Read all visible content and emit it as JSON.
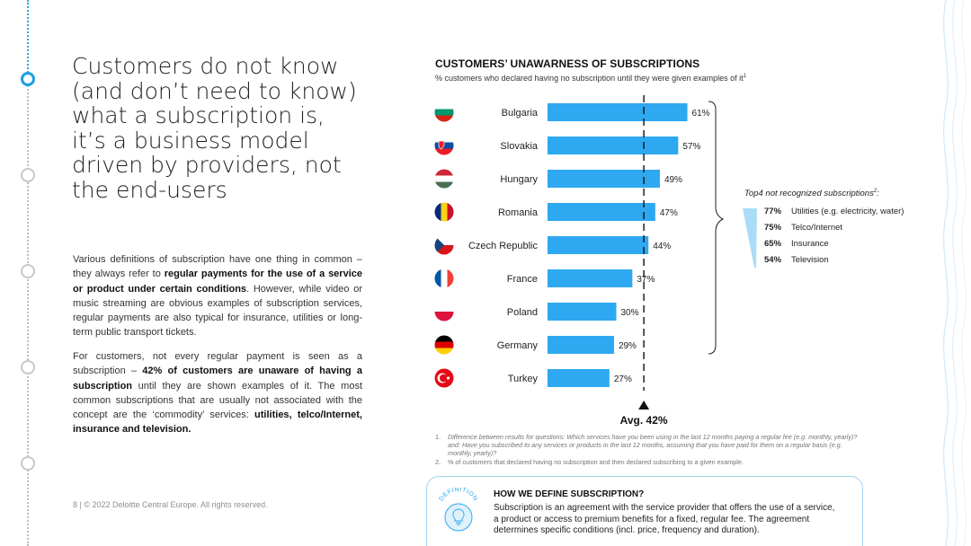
{
  "page": {
    "headline_lines": [
      "Customers do not know",
      "(and don’t need to know)",
      "what a subscription is,",
      "it’s a business model",
      "driven by providers, not",
      "the end-users"
    ],
    "paragraph1": {
      "t1": "Various definitions of subscription have one thing in common – they always refer to ",
      "b1": "regular payments for the use of a service or product under certain conditions",
      "t2": ". However, while video or music streaming are obvious examples of subscription services, regular payments are also typical for insurance, utilities or long-term public transport tickets."
    },
    "paragraph2": {
      "t1": "For customers, not every regular payment is seen as a subscription – ",
      "b1": "42% of customers are unaware of having a subscription",
      "t2": " until they are shown examples of it. The most common subscriptions that are usually not associated with the concept are the ‘commodity’ services: ",
      "b2": "utilities, telco/Internet, insurance and television."
    },
    "footer": "8  |  © 2022 Deloitte Central Europe. All rights reserved."
  },
  "chart_data": {
    "type": "bar",
    "title": "CUSTOMERS’ UNAWARNESS OF SUBSCRIPTIONS",
    "subtitle": "% customers who declared having no subscription until they were given examples of it",
    "subtitle_sup": "1",
    "categories": [
      "Bulgaria",
      "Slovakia",
      "Hungary",
      "Romania",
      "Czech Republic",
      "France",
      "Poland",
      "Germany",
      "Turkey"
    ],
    "values": [
      61,
      57,
      49,
      47,
      44,
      37,
      30,
      29,
      27
    ],
    "value_labels": [
      "61%",
      "57%",
      "49%",
      "47%",
      "44%",
      "37%",
      "30%",
      "29%",
      "27%"
    ],
    "average": 42,
    "average_label": "Avg. 42%",
    "xlim": [
      0,
      70
    ],
    "bar_color": "#2ea8f0",
    "grid": false,
    "legend": "none"
  },
  "flag_icons": [
    "flag-bulgaria-icon",
    "flag-slovakia-icon",
    "flag-hungary-icon",
    "flag-romania-icon",
    "flag-czech-icon",
    "flag-france-icon",
    "flag-poland-icon",
    "flag-germany-icon",
    "flag-turkey-icon"
  ],
  "top4": {
    "title": "Top4 not recognized subscriptions",
    "title_sup": "2",
    "title_suffix": ":",
    "items": [
      {
        "pct": "77%",
        "label": "Utilities (e.g. electricity, water)"
      },
      {
        "pct": "75%",
        "label": "Telco/Internet"
      },
      {
        "pct": "65%",
        "label": "Insurance"
      },
      {
        "pct": "54%",
        "label": "Television"
      }
    ],
    "accent_color": "#a9dcf7"
  },
  "notes": [
    {
      "num": "1.",
      "text": "Difference between results for questions: Which services have you been using in the last 12 months paying a regular fee (e.g. monthly, yearly)? and: Have you subscribed to any services or products in the last 12 months, assuming that you have paid for them on a regular basis (e.g. monthly, yearly)?"
    },
    {
      "num": "2.",
      "text": "% of customers that declared having no subscription and then declared subscribing to a given example."
    }
  ],
  "definition": {
    "badge": "DEFINITION",
    "icon": "lightbulb-icon",
    "heading": "HOW WE DEFINE SUBSCRIPTION?",
    "text": "Subscription is an agreement with the service provider that offers the use of a service, a product or access to premium benefits for a fixed, regular fee. The agreement determines specific conditions (incl. price, frequency and duration)."
  },
  "colors": {
    "accent": "#1e9fe0",
    "bar": "#2ea8f0",
    "light_accent": "#a9dcf7"
  }
}
